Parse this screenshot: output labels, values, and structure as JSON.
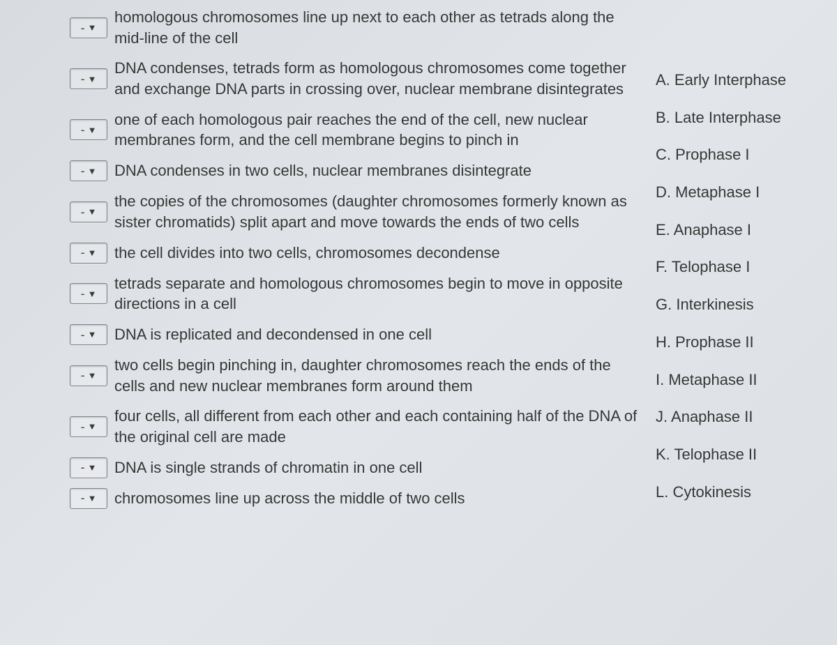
{
  "selector_placeholder": "-",
  "questions": [
    {
      "text": "homologous chromosomes line up next to each other as tetrads along the mid-line of the cell"
    },
    {
      "text": "DNA condenses, tetrads form as homologous chromosomes come together and exchange DNA parts in crossing over, nuclear membrane disintegrates"
    },
    {
      "text": "one of each homologous pair reaches the end of the cell, new nuclear membranes form, and the cell membrane begins to pinch in"
    },
    {
      "text": "DNA condenses in two cells, nuclear membranes disintegrate"
    },
    {
      "text": "the copies of the chromosomes (daughter chromosomes formerly known as sister chromatids) split apart and move towards the ends of two cells"
    },
    {
      "text": "the cell divides into two cells, chromosomes decondense"
    },
    {
      "text": "tetrads separate and homologous chromosomes begin to move in opposite directions in a cell"
    },
    {
      "text": "DNA is replicated and decondensed in one cell"
    },
    {
      "text": "two cells begin pinching in, daughter chromosomes reach the ends of the cells and new nuclear membranes form around them"
    },
    {
      "text": "four cells, all different from each other and each containing half of the DNA of the original cell are made"
    },
    {
      "text": "DNA is single strands of chromatin in one cell"
    },
    {
      "text": "chromosomes line up across the middle of two cells"
    }
  ],
  "answers": [
    {
      "label": "A.",
      "text": "Early Interphase"
    },
    {
      "label": "B.",
      "text": "Late Interphase"
    },
    {
      "label": "C.",
      "text": "Prophase I"
    },
    {
      "label": "D.",
      "text": "Metaphase I"
    },
    {
      "label": "E.",
      "text": "Anaphase I"
    },
    {
      "label": "F.",
      "text": "Telophase I"
    },
    {
      "label": "G.",
      "text": "Interkinesis"
    },
    {
      "label": "H.",
      "text": "Prophase II"
    },
    {
      "label": "I.",
      "text": "Metaphase II"
    },
    {
      "label": "J.",
      "text": "Anaphase II"
    },
    {
      "label": "K.",
      "text": "Telophase II"
    },
    {
      "label": "L.",
      "text": "Cytokinesis"
    }
  ],
  "colors": {
    "text": "#353535",
    "border": "#7a7f84",
    "bg_start": "#d8dce0",
    "bg_end": "#dce0e4"
  },
  "fontsize_body": 22,
  "fontsize_selector": 18
}
